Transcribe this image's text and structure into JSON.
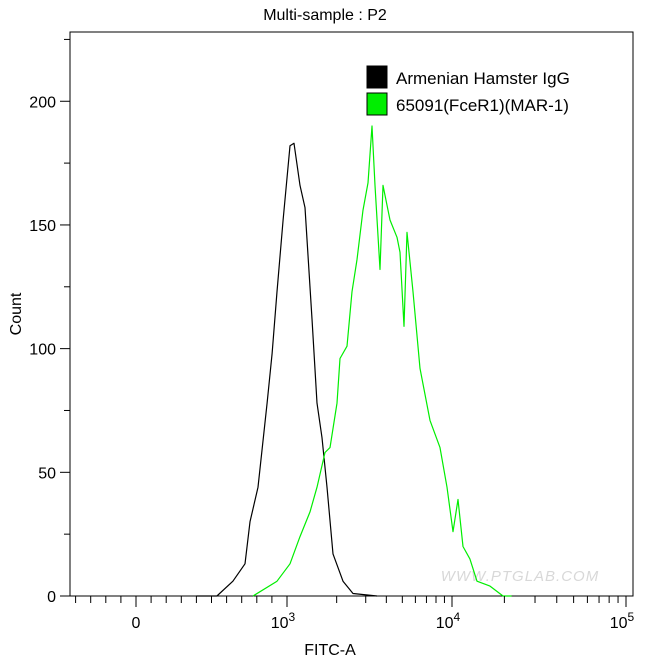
{
  "chart_data": {
    "type": "line",
    "title": "Multi-sample : P2",
    "xlabel": "FITC-A",
    "ylabel": "Count",
    "x_scale": "biexponential",
    "xlim": [
      -400,
      100000
    ],
    "ylim": [
      0,
      228
    ],
    "x_ticks": [
      {
        "value": 0,
        "base": "0",
        "exp": ""
      },
      {
        "value": 1000,
        "base": "10",
        "exp": "3"
      },
      {
        "value": 10000,
        "base": "10",
        "exp": "4"
      },
      {
        "value": 100000,
        "base": "10",
        "exp": "5"
      }
    ],
    "y_ticks": [
      0,
      50,
      100,
      150,
      200
    ],
    "grid": false,
    "legend_position": "top-right",
    "series": [
      {
        "name": "Armenian Hamster IgG",
        "color": "#000000",
        "points": [
          [
            400,
            0
          ],
          [
            536,
            0
          ],
          [
            642,
            6
          ],
          [
            722,
            13
          ],
          [
            755,
            30
          ],
          [
            808,
            44
          ],
          [
            868,
            78
          ],
          [
            901,
            98
          ],
          [
            934,
            123
          ],
          [
            974,
            152
          ],
          [
            1043,
            182
          ],
          [
            1103,
            183
          ],
          [
            1199,
            166
          ],
          [
            1285,
            157
          ],
          [
            1418,
            112
          ],
          [
            1520,
            78
          ],
          [
            1630,
            64
          ],
          [
            1747,
            44
          ],
          [
            1900,
            17
          ],
          [
            2184,
            6
          ],
          [
            2512,
            1
          ],
          [
            3511,
            0
          ]
        ]
      },
      {
        "name": "65091(FceR1)(MAR-1)",
        "color": "#00ee00",
        "points": [
          [
            775,
            0
          ],
          [
            934,
            6
          ],
          [
            1043,
            13
          ],
          [
            1199,
            24
          ],
          [
            1378,
            34
          ],
          [
            1520,
            44
          ],
          [
            1700,
            58
          ],
          [
            1823,
            60
          ],
          [
            2010,
            78
          ],
          [
            2096,
            96
          ],
          [
            2310,
            101
          ],
          [
            2476,
            123
          ],
          [
            2655,
            136
          ],
          [
            2888,
            156
          ],
          [
            3096,
            167
          ],
          [
            3273,
            190
          ],
          [
            3413,
            166
          ],
          [
            3660,
            132
          ],
          [
            3818,
            166
          ],
          [
            4207,
            152
          ],
          [
            4643,
            145
          ],
          [
            4838,
            139
          ],
          [
            5117,
            109
          ],
          [
            5337,
            147
          ],
          [
            5802,
            123
          ],
          [
            6397,
            92
          ],
          [
            7357,
            71
          ],
          [
            8453,
            60
          ],
          [
            9326,
            44
          ],
          [
            10133,
            26
          ],
          [
            10820,
            39
          ],
          [
            11560,
            20
          ],
          [
            12680,
            15
          ],
          [
            13920,
            6
          ],
          [
            16530,
            4
          ],
          [
            19630,
            0
          ],
          [
            22000,
            0
          ]
        ]
      }
    ]
  },
  "watermark": "WWW.PTGLAB.COM"
}
